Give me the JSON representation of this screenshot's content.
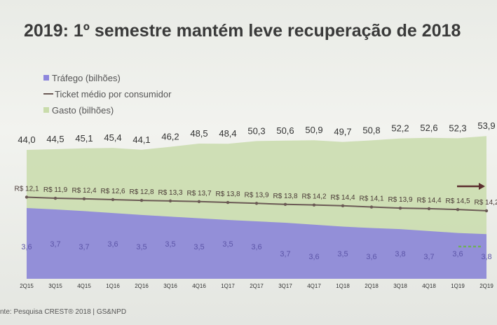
{
  "title": "2019: 1º semestre mantém leve recuperação de 2018",
  "source": "nte: Pesquisa CREST® 2018 | GS&NPD",
  "legend": {
    "trafego": "Tráfego (bilhões)",
    "ticket": "Ticket médio por consumidor",
    "gasto": "Gasto (bilhões)"
  },
  "colors": {
    "trafego": "#8d86dc",
    "gasto": "#c9dcab",
    "ticket": "#6b5a55",
    "arrow": "#5b2e2e",
    "arrow_green": "#6fae5e"
  },
  "chart_data": {
    "type": "area",
    "categories": [
      "2Q15",
      "3Q15",
      "4Q15",
      "1Q16",
      "2Q16",
      "3Q16",
      "4Q16",
      "1Q17",
      "2Q17",
      "3Q17",
      "4Q17",
      "1Q18",
      "2Q18",
      "3Q18",
      "4Q18",
      "1Q19",
      "2Q19"
    ],
    "series": [
      {
        "name": "Gasto (bilhões)",
        "values": [
          44.0,
          44.5,
          45.1,
          45.4,
          44.1,
          46.2,
          48.5,
          48.4,
          50.3,
          50.6,
          50.9,
          49.7,
          50.8,
          52.2,
          52.6,
          52.3,
          53.9
        ],
        "labels": [
          "44,0",
          "44,5",
          "45,1",
          "45,4",
          "44,1",
          "46,2",
          "48,5",
          "48,4",
          "50,3",
          "50,6",
          "50,9",
          "49,7",
          "50,8",
          "52,2",
          "52,6",
          "52,3",
          "53,9"
        ]
      },
      {
        "name": "Ticket médio por consumidor",
        "values": [
          12.1,
          11.9,
          12.4,
          12.6,
          12.8,
          13.3,
          13.7,
          13.8,
          13.9,
          13.8,
          14.2,
          14.4,
          14.1,
          13.9,
          14.4,
          14.5,
          14.2
        ],
        "labels": [
          "R$ 12,1",
          "R$ 11,9",
          "R$ 12,4",
          "R$ 12,6",
          "R$ 12,8",
          "R$ 13,3",
          "R$ 13,7",
          "R$ 13,8",
          "R$ 13,9",
          "R$ 13,8",
          "R$ 14,2",
          "R$ 14,4",
          "R$ 14,1",
          "R$ 13,9",
          "R$ 14,4",
          "R$ 14,5",
          "R$ 14,2"
        ]
      },
      {
        "name": "Tráfego (bilhões)",
        "values": [
          3.6,
          3.7,
          3.7,
          3.6,
          3.5,
          3.5,
          3.5,
          3.5,
          3.6,
          3.7,
          3.6,
          3.5,
          3.6,
          3.8,
          3.7,
          3.6,
          3.8
        ],
        "labels": [
          "3,6",
          "3,7",
          "3,7",
          "3,6",
          "3,5",
          "3,5",
          "3,5",
          "3,5",
          "3,6",
          "3,7",
          "3,6",
          "3,5",
          "3,6",
          "3,8",
          "3,7",
          "3,6",
          "3,8"
        ]
      }
    ]
  }
}
